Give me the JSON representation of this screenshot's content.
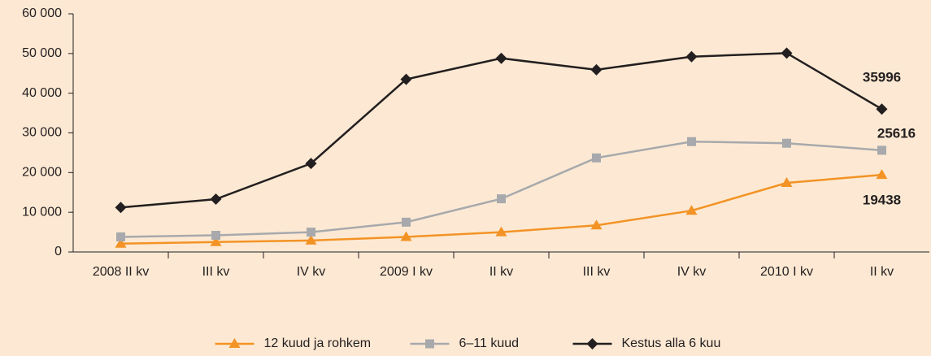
{
  "chart_data": {
    "type": "line",
    "categories": [
      "2008 II kv",
      "III kv",
      "IV kv",
      "2009 I kv",
      "II kv",
      "III kv",
      "IV kv",
      "2010 I kv",
      "II kv"
    ],
    "series": [
      {
        "name": "12 kuud ja rohkem",
        "color": "#f39325",
        "marker": "triangle",
        "values": [
          2100,
          2500,
          2900,
          3800,
          5000,
          6700,
          10400,
          17400,
          19438
        ]
      },
      {
        "name": "6–11 kuud",
        "color": "#a7a9ac",
        "marker": "square",
        "values": [
          3800,
          4200,
          5000,
          7500,
          13400,
          23700,
          27800,
          27400,
          25616
        ]
      },
      {
        "name": "Kestus alla 6 kuu",
        "color": "#231f20",
        "marker": "diamond",
        "values": [
          11200,
          13300,
          22300,
          43500,
          48800,
          45900,
          49200,
          50100,
          35996
        ]
      }
    ],
    "ylim": [
      0,
      60000
    ],
    "yticks": [
      0,
      {
        "value": 10000,
        "label": "10 000"
      },
      {
        "value": 20000,
        "label": "20 000"
      },
      {
        "value": 30000,
        "label": "30 000"
      },
      {
        "value": 40000,
        "label": "40 000"
      },
      {
        "value": 50000,
        "label": "50 000"
      },
      {
        "value": 60000,
        "label": "60 000"
      }
    ],
    "grid": false,
    "legend": "bottom"
  }
}
